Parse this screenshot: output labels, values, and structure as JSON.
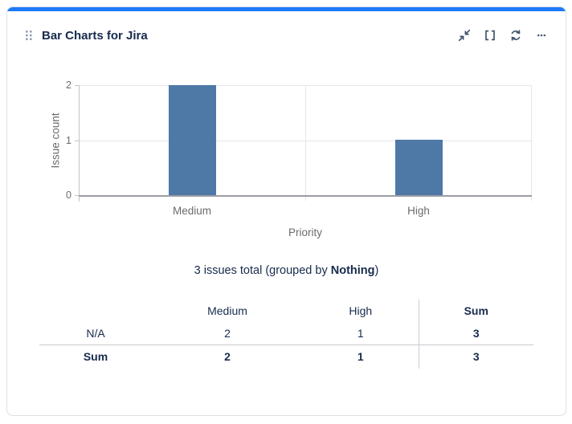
{
  "card": {
    "title": "Bar Charts for Jira",
    "accent_color": "#1D7AFC",
    "icon_color": "#44546F",
    "icons": {
      "drag_handle": "grip-dots-icon",
      "minimize": "collapse-arrows-icon",
      "expand": "corner-brackets-icon",
      "refresh": "circular-arrows-icon",
      "more": "ellipsis-icon"
    }
  },
  "chart_data": {
    "type": "bar",
    "title": "",
    "categories": [
      "Medium",
      "High"
    ],
    "values": [
      2,
      1
    ],
    "xlabel": "Priority",
    "ylabel": "Issue count",
    "yticks": [
      0,
      1,
      2
    ],
    "ylim": [
      0,
      2
    ],
    "bar_color": "#4E79A7",
    "grid": true,
    "legend": "none"
  },
  "summary": {
    "text_prefix": "3 issues total (grouped by ",
    "group_by": "Nothing",
    "text_suffix": ")"
  },
  "table": {
    "columns": [
      "",
      "Medium",
      "High",
      "Sum"
    ],
    "rows": [
      {
        "label": "N/A",
        "values": [
          "2",
          "1",
          "3"
        ],
        "bold": false
      },
      {
        "label": "Sum",
        "values": [
          "2",
          "1",
          "3"
        ],
        "bold": true
      }
    ]
  }
}
